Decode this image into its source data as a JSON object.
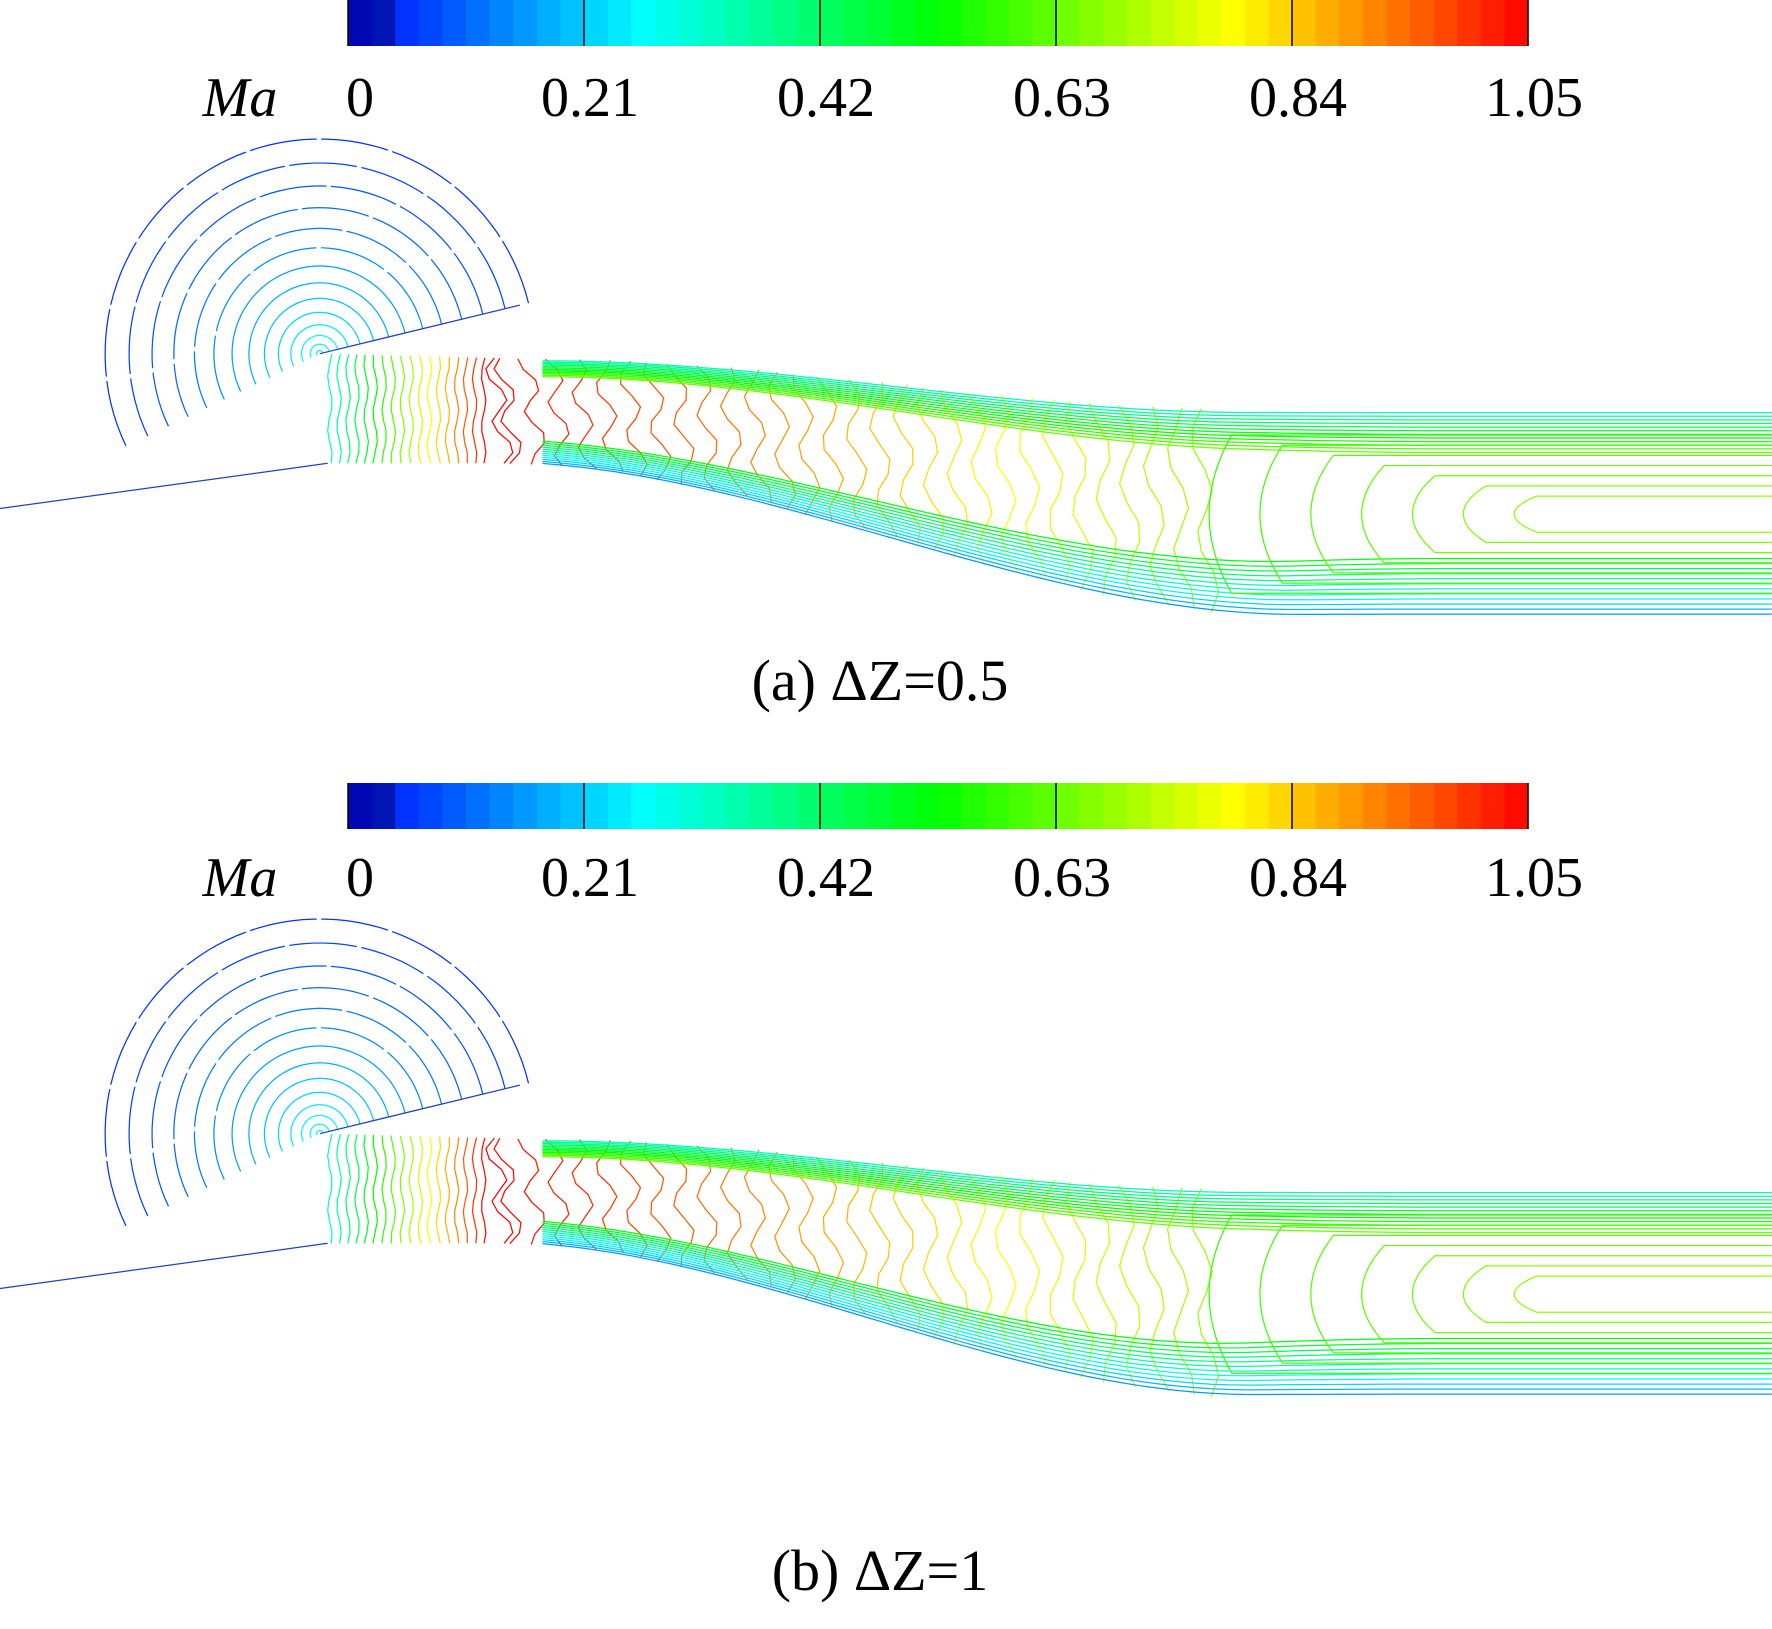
{
  "chart_data": [
    {
      "type": "contour",
      "title": "(a) ΔZ=0.5",
      "colorbar_label": "Ma",
      "clim": [
        0,
        1.05
      ],
      "cticks": [
        0,
        0.21,
        0.42,
        0.63,
        0.84,
        1.05
      ]
    },
    {
      "type": "contour",
      "title": "(b) ΔZ=1",
      "colorbar_label": "Ma",
      "clim": [
        0,
        1.05
      ],
      "cticks": [
        0,
        0.21,
        0.42,
        0.63,
        0.84,
        1.05
      ]
    }
  ]
}
